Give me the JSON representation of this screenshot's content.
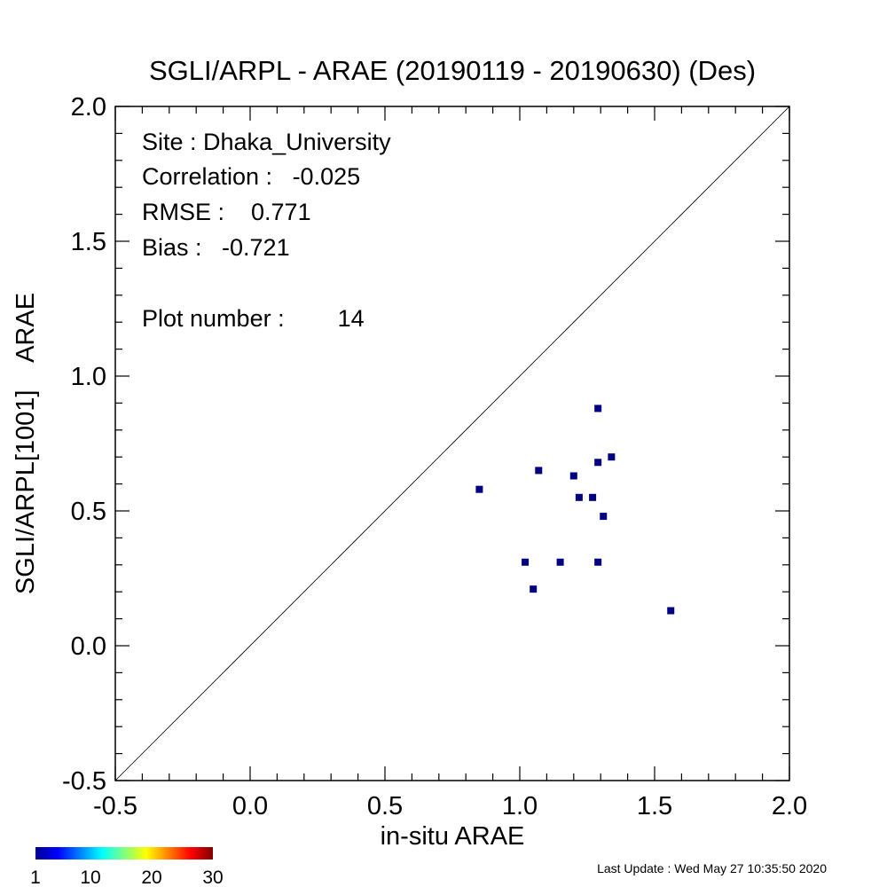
{
  "chart_data": {
    "type": "scatter",
    "title": "SGLI/ARPL - ARAE (20190119 - 20190630) (Des)",
    "xlabel": "in-situ ARAE",
    "ylabel": "SGLI/ARPL[1001]    ARAE",
    "xlim": [
      -0.5,
      2.0
    ],
    "ylim": [
      -0.5,
      2.0
    ],
    "xticks": [
      "-0.5",
      "0.0",
      "0.5",
      "1.0",
      "1.5",
      "2.0"
    ],
    "yticks": [
      "-0.5",
      "0.0",
      "0.5",
      "1.0",
      "1.5",
      "2.0"
    ],
    "reference_line": "1:1",
    "point_color": "#000080",
    "points": [
      {
        "x": 0.85,
        "y": 0.58
      },
      {
        "x": 1.02,
        "y": 0.31
      },
      {
        "x": 1.05,
        "y": 0.21
      },
      {
        "x": 1.07,
        "y": 0.65
      },
      {
        "x": 1.15,
        "y": 0.31
      },
      {
        "x": 1.2,
        "y": 0.63
      },
      {
        "x": 1.22,
        "y": 0.55
      },
      {
        "x": 1.27,
        "y": 0.55
      },
      {
        "x": 1.29,
        "y": 0.88
      },
      {
        "x": 1.29,
        "y": 0.68
      },
      {
        "x": 1.29,
        "y": 0.31
      },
      {
        "x": 1.31,
        "y": 0.48
      },
      {
        "x": 1.34,
        "y": 0.7
      },
      {
        "x": 1.56,
        "y": 0.13
      }
    ]
  },
  "stats": {
    "site": "Site : Dhaka_University",
    "correlation": "Correlation :   -0.025",
    "rmse": "RMSE :    0.771",
    "bias": "Bias :   -0.721",
    "plot_number": "Plot number :        14"
  },
  "colorbar": {
    "labels": [
      "1",
      "10",
      "20",
      "30"
    ],
    "min": 1,
    "max": 30
  },
  "footer": {
    "last_update": "Last Update : Wed May 27 10:35:50 2020"
  }
}
